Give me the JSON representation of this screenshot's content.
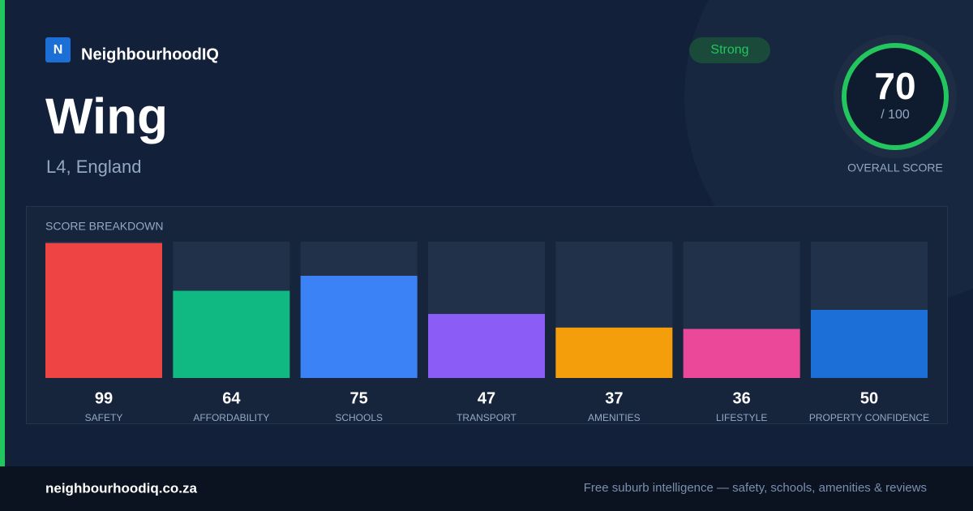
{
  "header": {
    "logo": "N",
    "brand": "NeighbourhoodIQ",
    "badge": "Strong"
  },
  "place": {
    "name": "Wing",
    "region": "L4, England"
  },
  "score": {
    "value": "70",
    "max": "/ 100",
    "label": "OVERALL SCORE"
  },
  "chart_data": {
    "type": "bar",
    "title": "SCORE BREAKDOWN",
    "categories": [
      "SAFETY",
      "AFFORDABILITY",
      "SCHOOLS",
      "TRANSPORT",
      "AMENITIES",
      "LIFESTYLE",
      "PROPERTY CONFIDENCE"
    ],
    "values": [
      99,
      64,
      75,
      47,
      37,
      36,
      50
    ],
    "colors": [
      "#ef4444",
      "#10b981",
      "#3b82f6",
      "#8b5cf6",
      "#f59e0b",
      "#ec4899",
      "#1d6fd8"
    ],
    "ylim": [
      0,
      100
    ]
  },
  "footer": {
    "url": "neighbourhoodiq.co.za",
    "tagline": "Free suburb intelligence — safety, schools, amenities & reviews"
  }
}
